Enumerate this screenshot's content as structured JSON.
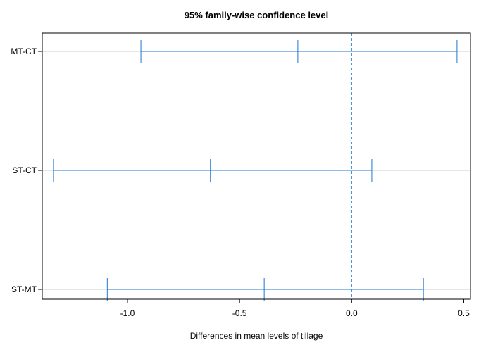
{
  "chart_data": {
    "type": "errorbar",
    "title": "95% family-wise confidence level",
    "xlabel": "Differences in mean levels of tillage",
    "ylabel": "",
    "xlim": [
      -1.38,
      0.53
    ],
    "x_ticks": [
      -1.0,
      -0.5,
      0.0,
      0.5
    ],
    "x_tick_labels": [
      "-1.0",
      "-0.5",
      "0.0",
      "0.5"
    ],
    "reference_line": 0.0,
    "grid": "horizontal at each comparison",
    "colors": {
      "interval": "#1f77d0",
      "reference": "#1f77d0",
      "grid": "#cccccc",
      "frame": "#000000"
    },
    "comparisons": [
      {
        "label": "MT-CT",
        "lwr": -0.94,
        "diff": -0.24,
        "upr": 0.47
      },
      {
        "label": "ST-CT",
        "lwr": -1.33,
        "diff": -0.63,
        "upr": 0.09
      },
      {
        "label": "ST-MT",
        "lwr": -1.09,
        "diff": -0.39,
        "upr": 0.32
      }
    ]
  }
}
